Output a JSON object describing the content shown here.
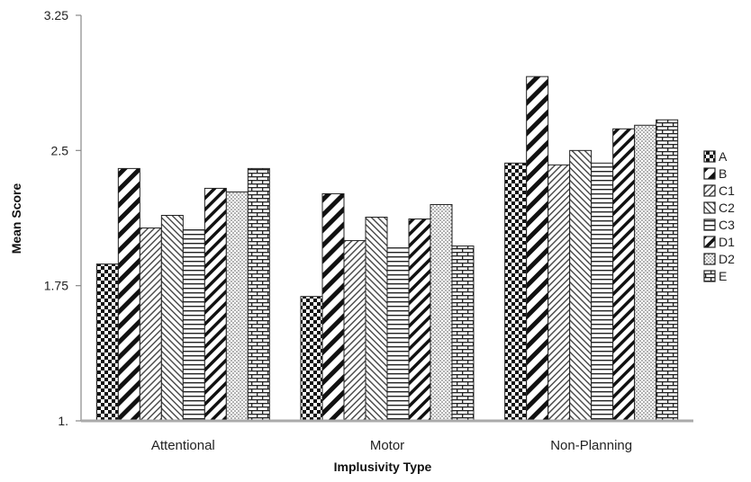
{
  "chart_data": {
    "type": "bar",
    "title": "",
    "xlabel": "Implusivity Type",
    "ylabel": "Mean Score",
    "categories": [
      "Attentional",
      "Motor",
      "Non-Planning"
    ],
    "y_ticks": [
      "1.",
      "1.75",
      "2.5",
      "3.25"
    ],
    "y_tick_values": [
      1.0,
      1.75,
      2.5,
      3.25
    ],
    "ylim": [
      1.0,
      3.25
    ],
    "grid": false,
    "legend_position": "right",
    "series": [
      {
        "name": "A",
        "pattern": "checker",
        "values": [
          1.87,
          1.69,
          2.43
        ]
      },
      {
        "name": "B",
        "pattern": "diag-wide",
        "values": [
          2.4,
          2.26,
          2.91
        ]
      },
      {
        "name": "C1",
        "pattern": "diag-fine",
        "values": [
          2.07,
          2.0,
          2.42
        ]
      },
      {
        "name": "C2",
        "pattern": "diag-up",
        "values": [
          2.14,
          2.13,
          2.5
        ]
      },
      {
        "name": "C3",
        "pattern": "horizontal",
        "values": [
          2.06,
          1.96,
          2.43
        ]
      },
      {
        "name": "D1",
        "pattern": "diag-bold",
        "values": [
          2.29,
          2.12,
          2.62
        ]
      },
      {
        "name": "D2",
        "pattern": "dots",
        "values": [
          2.27,
          2.2,
          2.64
        ]
      },
      {
        "name": "E",
        "pattern": "brick",
        "values": [
          2.4,
          1.97,
          2.67
        ]
      }
    ]
  }
}
